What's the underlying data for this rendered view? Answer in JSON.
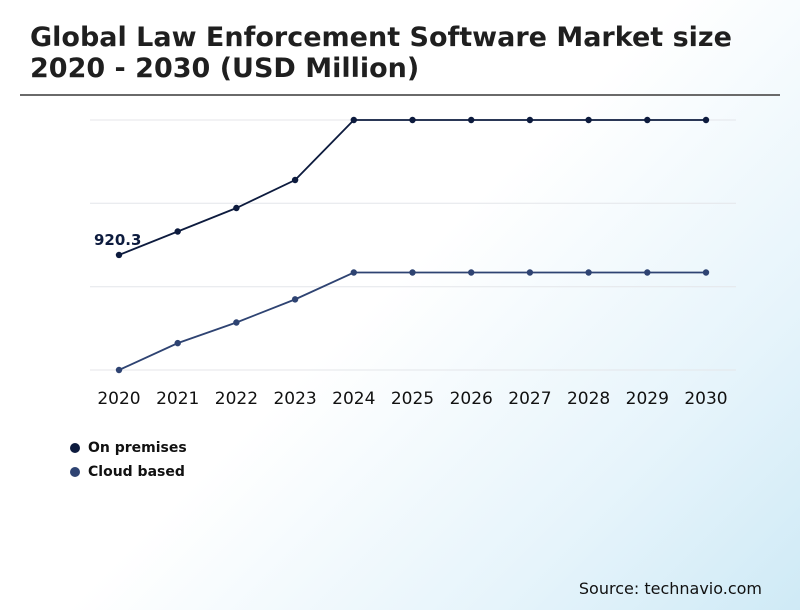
{
  "header": {
    "title": "Global Law Enforcement Software Market size 2020 - 2030 (USD Million)"
  },
  "footer": {
    "source": "Source: technavio.com"
  },
  "colors": {
    "on_premises": "#0d1b3e",
    "cloud_based": "#2e4372",
    "grid": "#e4e6ea"
  },
  "chart_data": {
    "type": "line",
    "title": "Global Law Enforcement Software Market size 2020 - 2030 (USD Million)",
    "xlabel": "",
    "ylabel": "",
    "x": [
      "2020",
      "2021",
      "2022",
      "2023",
      "2024",
      "2025",
      "2026",
      "2027",
      "2028",
      "2029",
      "2030"
    ],
    "ylim": [
      0,
      2000
    ],
    "grid": true,
    "legend": "bottom-left",
    "annotations": [
      {
        "series": "On premises",
        "x": "2020",
        "text": "920.3"
      }
    ],
    "series": [
      {
        "name": "On premises",
        "values": [
          920.3,
          1108,
          1296,
          1520,
          2000,
          2000,
          2000,
          2000,
          2000,
          2000,
          2000
        ]
      },
      {
        "name": "Cloud based",
        "values": [
          0,
          215,
          380,
          565,
          780,
          780,
          780,
          780,
          780,
          780,
          780
        ]
      }
    ]
  }
}
